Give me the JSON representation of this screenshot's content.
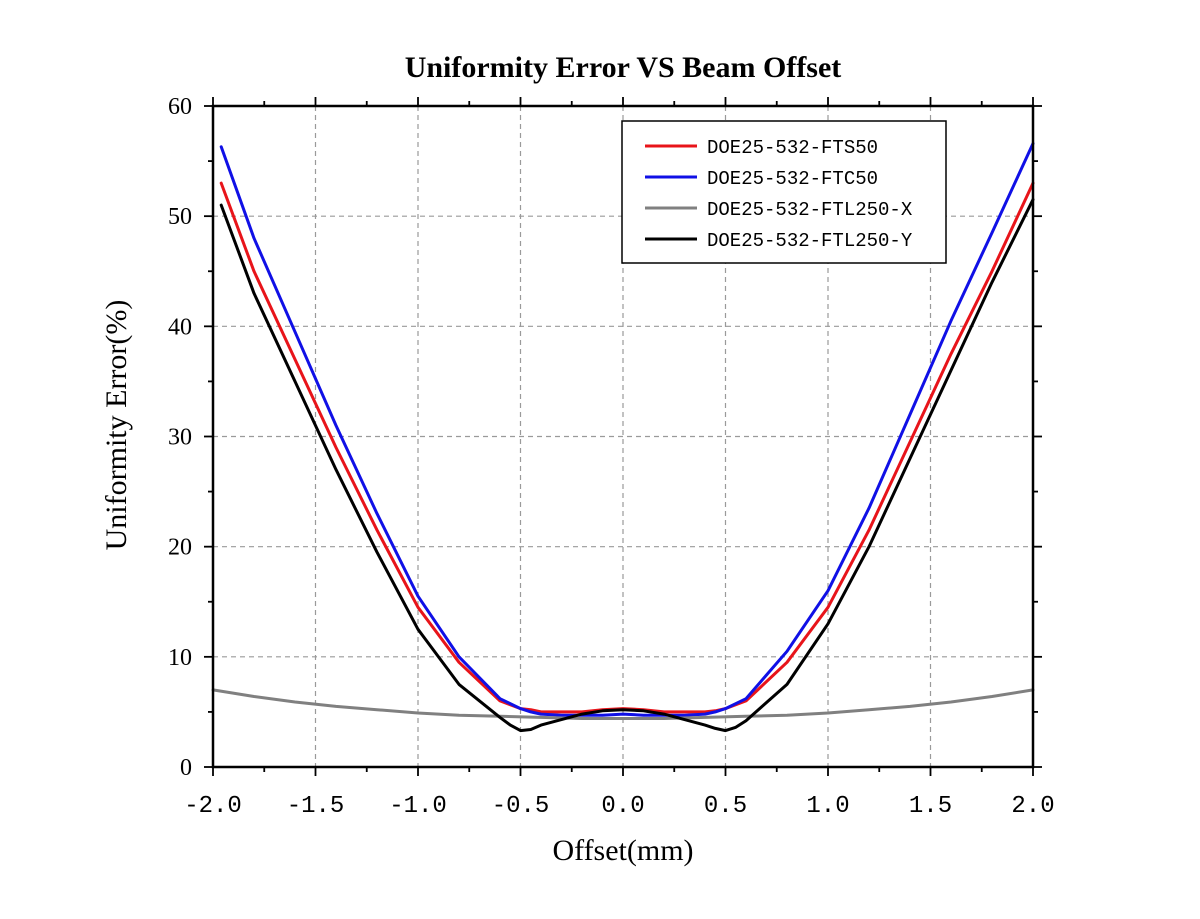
{
  "chart_data": {
    "type": "line",
    "title": "Uniformity Error VS Beam Offset",
    "xlabel": "Offset(mm)",
    "ylabel": "Uniformity Error(%)",
    "xlim": [
      -2.0,
      2.0
    ],
    "ylim": [
      0,
      60
    ],
    "x_ticks": [
      -2.0,
      -1.5,
      -1.0,
      -0.5,
      0.0,
      0.5,
      1.0,
      1.5,
      2.0
    ],
    "x_tick_labels": [
      "-2.0",
      "-1.5",
      "-1.0",
      "-0.5",
      "0.0",
      "0.5",
      "1.0",
      "1.5",
      "2.0"
    ],
    "y_ticks": [
      0,
      10,
      20,
      30,
      40,
      50,
      60
    ],
    "y_tick_labels": [
      "0",
      "10",
      "20",
      "30",
      "40",
      "50",
      "60"
    ],
    "grid": true,
    "legend_position": "top-right",
    "series": [
      {
        "name": "DOE25-532-FTS50",
        "color": "#e8141a",
        "x": [
          -1.96,
          -1.8,
          -1.6,
          -1.4,
          -1.2,
          -1.0,
          -0.8,
          -0.6,
          -0.5,
          -0.45,
          -0.4,
          -0.3,
          -0.2,
          -0.1,
          0.0,
          0.1,
          0.2,
          0.3,
          0.4,
          0.45,
          0.5,
          0.6,
          0.8,
          1.0,
          1.2,
          1.4,
          1.6,
          1.8,
          2.0
        ],
        "y": [
          53.0,
          45.0,
          37.0,
          29.0,
          21.5,
          14.5,
          9.5,
          6.0,
          5.3,
          5.2,
          5.0,
          5.0,
          5.0,
          5.2,
          5.3,
          5.2,
          5.0,
          5.0,
          5.0,
          5.1,
          5.3,
          6.0,
          9.5,
          14.5,
          21.5,
          29.5,
          37.5,
          45.0,
          53.0
        ]
      },
      {
        "name": "DOE25-532-FTC50",
        "color": "#1010e6",
        "x": [
          -1.96,
          -1.8,
          -1.6,
          -1.4,
          -1.2,
          -1.0,
          -0.8,
          -0.6,
          -0.5,
          -0.45,
          -0.4,
          -0.3,
          -0.2,
          -0.1,
          0.0,
          0.1,
          0.2,
          0.3,
          0.4,
          0.45,
          0.5,
          0.6,
          0.8,
          1.0,
          1.2,
          1.4,
          1.6,
          1.8,
          2.0
        ],
        "y": [
          56.3,
          48.0,
          39.5,
          31.0,
          23.0,
          15.5,
          10.0,
          6.2,
          5.3,
          5.0,
          4.8,
          4.7,
          4.7,
          4.7,
          4.8,
          4.7,
          4.7,
          4.7,
          4.8,
          5.0,
          5.3,
          6.2,
          10.5,
          16.0,
          23.5,
          32.0,
          40.5,
          48.5,
          56.6
        ]
      },
      {
        "name": "DOE25-532-FTL250-X",
        "color": "#808080",
        "x": [
          -2.0,
          -1.8,
          -1.6,
          -1.4,
          -1.2,
          -1.0,
          -0.8,
          -0.6,
          -0.4,
          -0.2,
          0.0,
          0.2,
          0.4,
          0.6,
          0.8,
          1.0,
          1.2,
          1.4,
          1.6,
          1.8,
          2.0
        ],
        "y": [
          7.0,
          6.4,
          5.9,
          5.5,
          5.2,
          4.9,
          4.7,
          4.6,
          4.5,
          4.4,
          4.4,
          4.4,
          4.5,
          4.6,
          4.7,
          4.9,
          5.2,
          5.5,
          5.9,
          6.4,
          7.0
        ]
      },
      {
        "name": "DOE25-532-FTL250-Y",
        "color": "#000000",
        "x": [
          -1.96,
          -1.8,
          -1.6,
          -1.4,
          -1.2,
          -1.0,
          -0.8,
          -0.6,
          -0.55,
          -0.5,
          -0.45,
          -0.4,
          -0.3,
          -0.2,
          -0.1,
          0.0,
          0.1,
          0.2,
          0.3,
          0.4,
          0.45,
          0.5,
          0.55,
          0.6,
          0.8,
          1.0,
          1.2,
          1.4,
          1.6,
          1.8,
          2.0
        ],
        "y": [
          51.0,
          43.0,
          35.0,
          27.0,
          19.5,
          12.5,
          7.5,
          4.5,
          3.8,
          3.3,
          3.4,
          3.8,
          4.3,
          4.8,
          5.1,
          5.2,
          5.1,
          4.8,
          4.3,
          3.8,
          3.5,
          3.3,
          3.6,
          4.2,
          7.5,
          13.0,
          20.0,
          28.0,
          36.0,
          44.0,
          51.5
        ]
      }
    ]
  }
}
